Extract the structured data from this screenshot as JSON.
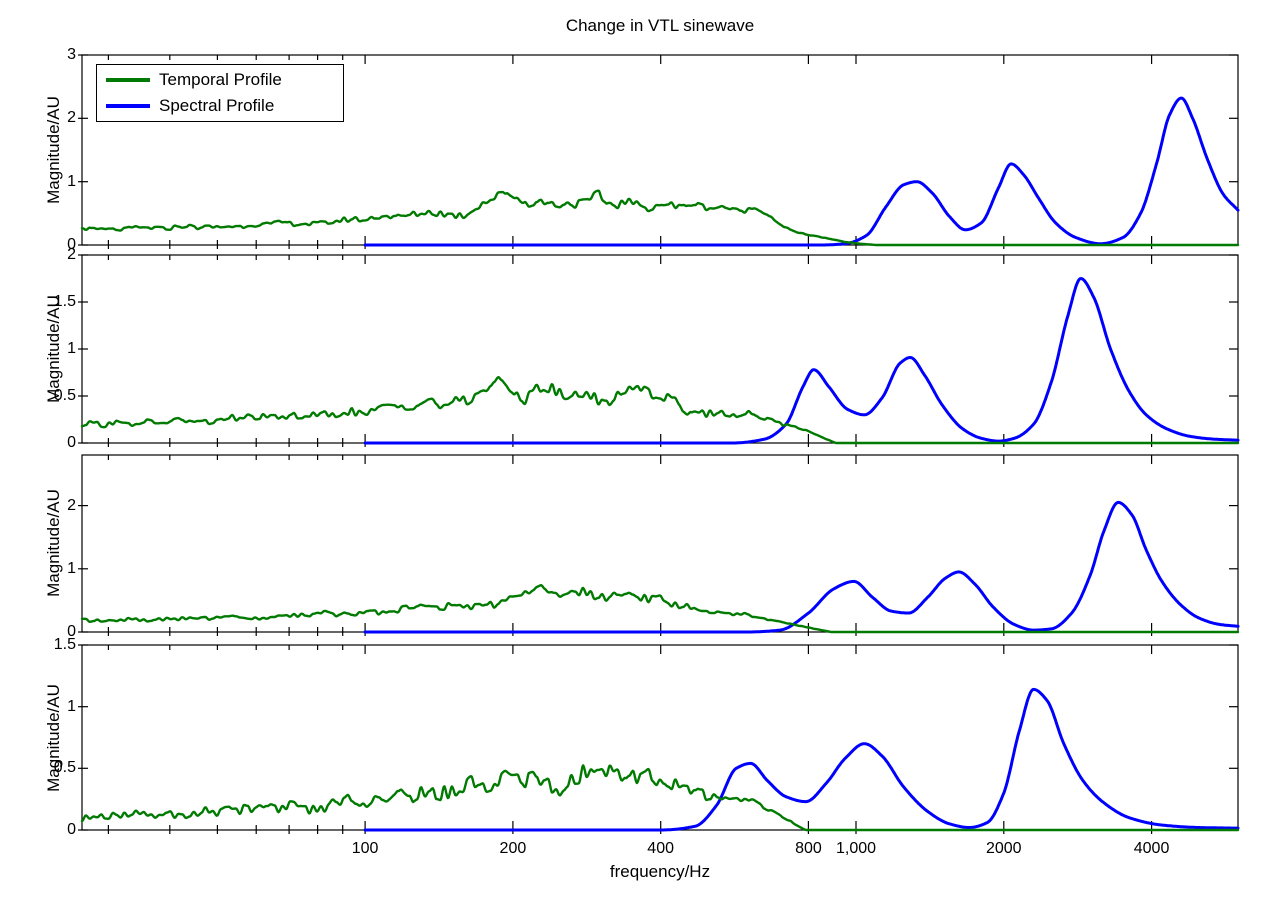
{
  "title": "Change in VTL sinewave",
  "xlabel": "frequency/Hz",
  "ylabel": "Magnitude/AU",
  "legend": {
    "items": [
      {
        "label": "Temporal Profile",
        "color": "#007A00"
      },
      {
        "label": "Spectral Profile",
        "color": "#0000FF"
      }
    ]
  },
  "chart_data": {
    "type": "line",
    "xscale": "log",
    "xlim": [
      26.5,
      6000
    ],
    "xticks_major": [
      {
        "f": 100,
        "label": "100"
      },
      {
        "f": 200,
        "label": "200"
      },
      {
        "f": 400,
        "label": "400"
      },
      {
        "f": 800,
        "label": "800"
      },
      {
        "f": 1000,
        "label": "1,000"
      },
      {
        "f": 2000,
        "label": "2000"
      },
      {
        "f": 4000,
        "label": "4000"
      }
    ],
    "xticks_minor": [
      30,
      40,
      50,
      60,
      70,
      80,
      90
    ],
    "colors": {
      "temporal": "#007A00",
      "spectral": "#0000FF"
    },
    "series_names": [
      "Temporal Profile",
      "Spectral Profile"
    ],
    "subplots": [
      {
        "ylim": [
          0,
          3
        ],
        "yticks": [
          {
            "v": 0,
            "label": "0"
          },
          {
            "v": 1,
            "label": "1"
          },
          {
            "v": 2,
            "label": "2"
          },
          {
            "v": 3,
            "label": "3"
          }
        ],
        "spectral_points": [
          [
            100,
            0
          ],
          [
            850,
            0
          ],
          [
            950,
            0.02
          ],
          [
            1050,
            0.15
          ],
          [
            1150,
            0.6
          ],
          [
            1250,
            0.95
          ],
          [
            1330,
            1.0
          ],
          [
            1430,
            0.82
          ],
          [
            1550,
            0.45
          ],
          [
            1670,
            0.24
          ],
          [
            1800,
            0.35
          ],
          [
            1950,
            0.9
          ],
          [
            2070,
            1.28
          ],
          [
            2200,
            1.1
          ],
          [
            2350,
            0.75
          ],
          [
            2550,
            0.35
          ],
          [
            2800,
            0.12
          ],
          [
            3150,
            0.02
          ],
          [
            3500,
            0.12
          ],
          [
            3800,
            0.5
          ],
          [
            4100,
            1.3
          ],
          [
            4350,
            2.05
          ],
          [
            4600,
            2.32
          ],
          [
            4850,
            2.0
          ],
          [
            5200,
            1.35
          ],
          [
            5600,
            0.8
          ],
          [
            6000,
            0.55
          ]
        ],
        "temporal_trend": [
          [
            26.5,
            0.25
          ],
          [
            40,
            0.27
          ],
          [
            60,
            0.31
          ],
          [
            80,
            0.36
          ],
          [
            100,
            0.42
          ],
          [
            130,
            0.48
          ],
          [
            160,
            0.52
          ],
          [
            185,
            0.8
          ],
          [
            195,
            0.85
          ],
          [
            210,
            0.65
          ],
          [
            230,
            0.68
          ],
          [
            255,
            0.6
          ],
          [
            285,
            0.68
          ],
          [
            300,
            0.75
          ],
          [
            310,
            0.62
          ],
          [
            340,
            0.66
          ],
          [
            370,
            0.6
          ],
          [
            400,
            0.63
          ],
          [
            430,
            0.58
          ],
          [
            460,
            0.62
          ],
          [
            500,
            0.58
          ],
          [
            540,
            0.6
          ],
          [
            580,
            0.56
          ],
          [
            620,
            0.6
          ],
          [
            660,
            0.5
          ],
          [
            680,
            0.42
          ],
          [
            720,
            0.28
          ],
          [
            760,
            0.2
          ],
          [
            820,
            0.15
          ],
          [
            880,
            0.1
          ],
          [
            950,
            0.05
          ],
          [
            1020,
            0.02
          ],
          [
            1100,
            0
          ]
        ],
        "temporal_noise_amp": [
          [
            26.5,
            0.05
          ],
          [
            80,
            0.07
          ],
          [
            120,
            0.1
          ],
          [
            200,
            0.13
          ],
          [
            420,
            0.12
          ],
          [
            550,
            0.08
          ],
          [
            650,
            0.05
          ],
          [
            720,
            0.03
          ],
          [
            800,
            0.015
          ],
          [
            900,
            0.008
          ],
          [
            1020,
            0
          ]
        ],
        "temporal_zero_from": 1100,
        "noise_seed": 5
      },
      {
        "ylim": [
          0,
          2
        ],
        "yticks": [
          {
            "v": 0,
            "label": "0"
          },
          {
            "v": 0.5,
            "label": "0.5"
          },
          {
            "v": 1,
            "label": "1"
          },
          {
            "v": 1.5,
            "label": "1.5"
          },
          {
            "v": 2,
            "label": "2"
          }
        ],
        "spectral_points": [
          [
            100,
            0
          ],
          [
            560,
            0
          ],
          [
            650,
            0.04
          ],
          [
            720,
            0.2
          ],
          [
            780,
            0.6
          ],
          [
            820,
            0.78
          ],
          [
            880,
            0.6
          ],
          [
            960,
            0.36
          ],
          [
            1040,
            0.3
          ],
          [
            1130,
            0.48
          ],
          [
            1230,
            0.85
          ],
          [
            1290,
            0.91
          ],
          [
            1380,
            0.72
          ],
          [
            1500,
            0.4
          ],
          [
            1650,
            0.15
          ],
          [
            1800,
            0.05
          ],
          [
            1950,
            0.02
          ],
          [
            2100,
            0.05
          ],
          [
            2300,
            0.2
          ],
          [
            2500,
            0.65
          ],
          [
            2700,
            1.35
          ],
          [
            2870,
            1.75
          ],
          [
            3050,
            1.55
          ],
          [
            3300,
            1.0
          ],
          [
            3600,
            0.55
          ],
          [
            3900,
            0.3
          ],
          [
            4300,
            0.15
          ],
          [
            4800,
            0.07
          ],
          [
            5400,
            0.04
          ],
          [
            6000,
            0.03
          ]
        ],
        "temporal_trend": [
          [
            26.5,
            0.2
          ],
          [
            40,
            0.22
          ],
          [
            60,
            0.26
          ],
          [
            80,
            0.3
          ],
          [
            100,
            0.34
          ],
          [
            130,
            0.4
          ],
          [
            160,
            0.46
          ],
          [
            190,
            0.68
          ],
          [
            205,
            0.5
          ],
          [
            230,
            0.58
          ],
          [
            255,
            0.48
          ],
          [
            280,
            0.56
          ],
          [
            305,
            0.48
          ],
          [
            330,
            0.52
          ],
          [
            360,
            0.65
          ],
          [
            390,
            0.48
          ],
          [
            420,
            0.44
          ],
          [
            450,
            0.36
          ],
          [
            480,
            0.3
          ],
          [
            520,
            0.33
          ],
          [
            560,
            0.3
          ],
          [
            620,
            0.3
          ],
          [
            660,
            0.25
          ],
          [
            700,
            0.2
          ],
          [
            760,
            0.17
          ],
          [
            820,
            0.1
          ],
          [
            870,
            0.04
          ],
          [
            910,
            0
          ]
        ],
        "temporal_noise_amp": [
          [
            26.5,
            0.05
          ],
          [
            80,
            0.07
          ],
          [
            120,
            0.1
          ],
          [
            200,
            0.13
          ],
          [
            400,
            0.12
          ],
          [
            500,
            0.09
          ],
          [
            600,
            0.06
          ],
          [
            680,
            0.03
          ],
          [
            760,
            0.015
          ],
          [
            850,
            0.008
          ],
          [
            910,
            0
          ]
        ],
        "temporal_zero_from": 910,
        "noise_seed": 12
      },
      {
        "ylim": [
          0,
          2.8
        ],
        "yticks": [
          {
            "v": 0,
            "label": "0"
          },
          {
            "v": 1,
            "label": "1"
          },
          {
            "v": 2,
            "label": "2"
          }
        ],
        "spectral_points": [
          [
            100,
            0
          ],
          [
            600,
            0
          ],
          [
            700,
            0.03
          ],
          [
            800,
            0.3
          ],
          [
            900,
            0.68
          ],
          [
            990,
            0.8
          ],
          [
            1080,
            0.55
          ],
          [
            1180,
            0.33
          ],
          [
            1280,
            0.3
          ],
          [
            1400,
            0.55
          ],
          [
            1520,
            0.85
          ],
          [
            1620,
            0.95
          ],
          [
            1750,
            0.75
          ],
          [
            1900,
            0.4
          ],
          [
            2100,
            0.12
          ],
          [
            2300,
            0.03
          ],
          [
            2500,
            0.05
          ],
          [
            2750,
            0.3
          ],
          [
            3000,
            0.9
          ],
          [
            3200,
            1.6
          ],
          [
            3420,
            2.05
          ],
          [
            3650,
            1.85
          ],
          [
            3900,
            1.3
          ],
          [
            4200,
            0.8
          ],
          [
            4600,
            0.42
          ],
          [
            5000,
            0.22
          ],
          [
            5500,
            0.12
          ],
          [
            6000,
            0.09
          ]
        ],
        "temporal_trend": [
          [
            26.5,
            0.18
          ],
          [
            40,
            0.2
          ],
          [
            60,
            0.24
          ],
          [
            80,
            0.28
          ],
          [
            100,
            0.33
          ],
          [
            130,
            0.38
          ],
          [
            160,
            0.44
          ],
          [
            200,
            0.52
          ],
          [
            230,
            0.68
          ],
          [
            250,
            0.55
          ],
          [
            280,
            0.6
          ],
          [
            310,
            0.52
          ],
          [
            340,
            0.58
          ],
          [
            370,
            0.52
          ],
          [
            400,
            0.56
          ],
          [
            430,
            0.45
          ],
          [
            470,
            0.38
          ],
          [
            510,
            0.33
          ],
          [
            560,
            0.28
          ],
          [
            620,
            0.25
          ],
          [
            680,
            0.18
          ],
          [
            740,
            0.12
          ],
          [
            800,
            0.07
          ],
          [
            850,
            0.03
          ],
          [
            890,
            0
          ]
        ],
        "temporal_noise_amp": [
          [
            26.5,
            0.05
          ],
          [
            80,
            0.07
          ],
          [
            120,
            0.1
          ],
          [
            200,
            0.14
          ],
          [
            400,
            0.12
          ],
          [
            480,
            0.08
          ],
          [
            560,
            0.05
          ],
          [
            640,
            0.03
          ],
          [
            720,
            0.015
          ],
          [
            880,
            0
          ]
        ],
        "temporal_zero_from": 890,
        "noise_seed": 27
      },
      {
        "ylim": [
          0,
          1.5
        ],
        "yticks": [
          {
            "v": 0,
            "label": "0"
          },
          {
            "v": 0.5,
            "label": "0.5"
          },
          {
            "v": 1,
            "label": "1"
          },
          {
            "v": 1.5,
            "label": "1.5"
          }
        ],
        "spectral_points": [
          [
            100,
            0
          ],
          [
            400,
            0
          ],
          [
            470,
            0.03
          ],
          [
            520,
            0.2
          ],
          [
            570,
            0.5
          ],
          [
            610,
            0.54
          ],
          [
            660,
            0.4
          ],
          [
            720,
            0.27
          ],
          [
            790,
            0.23
          ],
          [
            870,
            0.38
          ],
          [
            950,
            0.58
          ],
          [
            1040,
            0.7
          ],
          [
            1130,
            0.6
          ],
          [
            1250,
            0.35
          ],
          [
            1400,
            0.15
          ],
          [
            1550,
            0.05
          ],
          [
            1700,
            0.02
          ],
          [
            1850,
            0.06
          ],
          [
            2000,
            0.3
          ],
          [
            2150,
            0.8
          ],
          [
            2300,
            1.14
          ],
          [
            2450,
            1.05
          ],
          [
            2650,
            0.7
          ],
          [
            2900,
            0.4
          ],
          [
            3200,
            0.22
          ],
          [
            3600,
            0.1
          ],
          [
            4200,
            0.04
          ],
          [
            5000,
            0.02
          ],
          [
            6000,
            0.015
          ]
        ],
        "temporal_trend": [
          [
            26.5,
            0.1
          ],
          [
            40,
            0.13
          ],
          [
            60,
            0.17
          ],
          [
            80,
            0.2
          ],
          [
            100,
            0.24
          ],
          [
            130,
            0.3
          ],
          [
            160,
            0.34
          ],
          [
            200,
            0.42
          ],
          [
            240,
            0.36
          ],
          [
            280,
            0.5
          ],
          [
            310,
            0.52
          ],
          [
            340,
            0.42
          ],
          [
            380,
            0.4
          ],
          [
            420,
            0.36
          ],
          [
            460,
            0.3
          ],
          [
            500,
            0.28
          ],
          [
            530,
            0.26
          ],
          [
            560,
            0.25
          ],
          [
            600,
            0.25
          ],
          [
            640,
            0.2
          ],
          [
            690,
            0.13
          ],
          [
            740,
            0.06
          ],
          [
            790,
            0
          ]
        ],
        "temporal_noise_amp": [
          [
            26.5,
            0.05
          ],
          [
            80,
            0.08
          ],
          [
            120,
            0.12
          ],
          [
            200,
            0.16
          ],
          [
            380,
            0.14
          ],
          [
            460,
            0.1
          ],
          [
            540,
            0.06
          ],
          [
            620,
            0.04
          ],
          [
            700,
            0.02
          ],
          [
            790,
            0
          ]
        ],
        "temporal_zero_from": 800,
        "noise_seed": 41
      }
    ]
  }
}
